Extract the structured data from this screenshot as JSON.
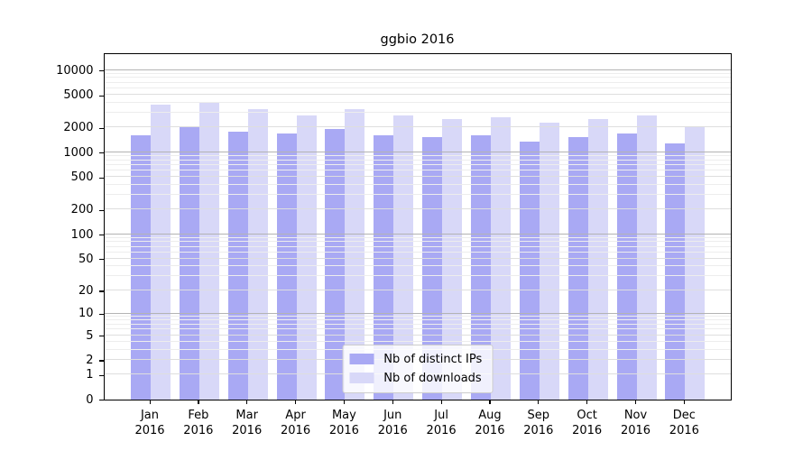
{
  "chart_data": {
    "type": "bar",
    "title": "ggbio 2016",
    "months": [
      "Jan",
      "Feb",
      "Mar",
      "Apr",
      "May",
      "Jun",
      "Jul",
      "Aug",
      "Sep",
      "Oct",
      "Nov",
      "Dec"
    ],
    "year": "2016",
    "categories": [
      "Jan 2016",
      "Feb 2016",
      "Mar 2016",
      "Apr 2016",
      "May 2016",
      "Jun 2016",
      "Jul 2016",
      "Aug 2016",
      "Sep 2016",
      "Oct 2016",
      "Nov 2016",
      "Dec 2016"
    ],
    "series": [
      {
        "name": "Nb of distinct IPs",
        "color": "#a9a9f4",
        "values": [
          1620,
          2030,
          1780,
          1690,
          1930,
          1590,
          1540,
          1590,
          1340,
          1540,
          1700,
          1290
        ]
      },
      {
        "name": "Nb of downloads",
        "color": "#d8d8f8",
        "values": [
          3760,
          4060,
          3340,
          2820,
          3340,
          2820,
          2550,
          2640,
          2270,
          2550,
          2800,
          2010
        ]
      }
    ],
    "y_ticks": [
      0,
      1,
      2,
      5,
      10,
      20,
      50,
      100,
      200,
      500,
      1000,
      2000,
      5000,
      10000
    ],
    "y_scale": "log1p",
    "ylim": [
      0,
      16600
    ],
    "xlabel": "",
    "ylabel": "",
    "grid": true,
    "legend_position": "lower center",
    "colors": {
      "grid_major": "#b3b3b3",
      "grid_mid": "#dedede",
      "grid_minor": "#ededed",
      "axis": "#000000",
      "background": "#ffffff"
    }
  }
}
